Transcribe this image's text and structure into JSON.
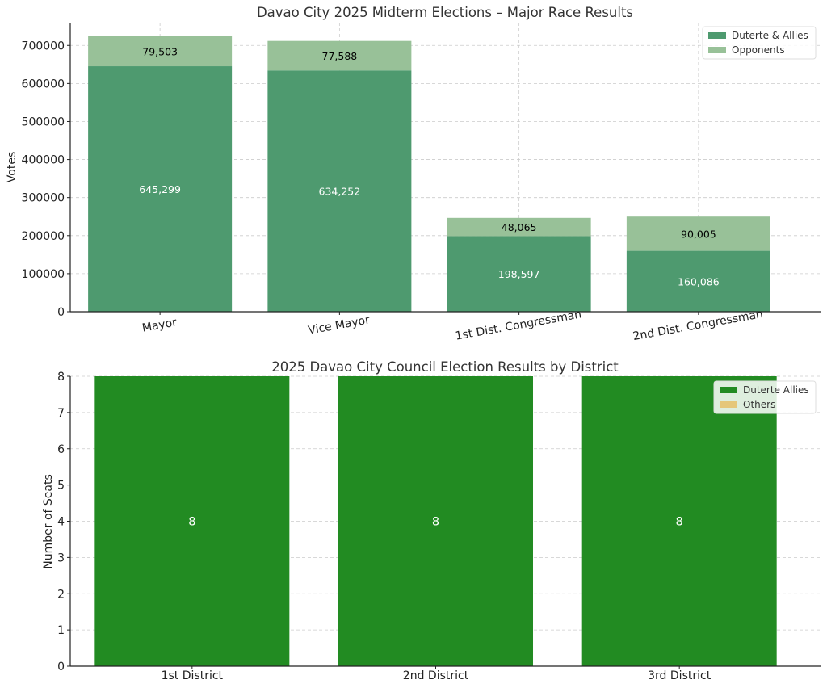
{
  "chart_data": [
    {
      "type": "bar",
      "stacked": true,
      "title": "Davao City 2025 Midterm Elections – Major Race Results",
      "xlabel": "",
      "ylabel": "Votes",
      "categories": [
        "Mayor",
        "Vice Mayor",
        "1st Dist. Congressman",
        "2nd Dist. Congressman"
      ],
      "series": [
        {
          "name": "Duterte & Allies",
          "color": "#4e9a6f",
          "values": [
            645299,
            634252,
            198597,
            160086
          ],
          "labels": [
            "645,299",
            "634,252",
            "198,597",
            "160,086"
          ]
        },
        {
          "name": "Opponents",
          "color": "#98c198",
          "values": [
            79503,
            77588,
            48065,
            90005
          ],
          "labels": [
            "79,503",
            "77,588",
            "48,065",
            "90,005"
          ]
        }
      ],
      "ylim": [
        0,
        760000
      ],
      "yticks": [
        0,
        100000,
        200000,
        300000,
        400000,
        500000,
        600000,
        700000
      ],
      "ytick_labels": [
        "0",
        "100000",
        "200000",
        "300000",
        "400000",
        "500000",
        "600000",
        "700000"
      ],
      "grid": true,
      "legend_position": "top-right"
    },
    {
      "type": "bar",
      "stacked": true,
      "title": "2025 Davao City Council Election Results by District",
      "xlabel": "",
      "ylabel": "Number of Seats",
      "categories": [
        "1st District",
        "2nd District",
        "3rd District"
      ],
      "series": [
        {
          "name": "Duterte Allies",
          "color": "#228b22",
          "values": [
            8,
            8,
            8
          ],
          "labels": [
            "8",
            "8",
            "8"
          ]
        },
        {
          "name": "Others",
          "color": "#e5c77a",
          "values": [
            0,
            0,
            0
          ],
          "labels": [
            "",
            "",
            ""
          ]
        }
      ],
      "ylim": [
        0,
        8
      ],
      "yticks": [
        0,
        1,
        2,
        3,
        4,
        5,
        6,
        7,
        8
      ],
      "ytick_labels": [
        "0",
        "1",
        "2",
        "3",
        "4",
        "5",
        "6",
        "7",
        "8"
      ],
      "grid": true,
      "legend_position": "top-right"
    }
  ]
}
